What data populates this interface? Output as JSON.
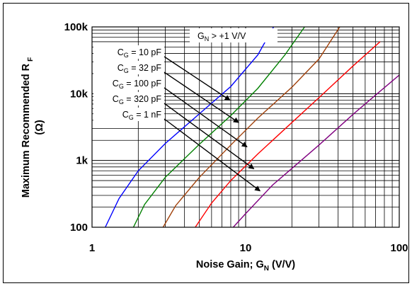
{
  "chart_data": {
    "type": "line",
    "x_scale": "log",
    "y_scale": "log",
    "xlim": [
      1,
      100
    ],
    "ylim": [
      100,
      100000
    ],
    "x_ticks": [
      "1",
      "10",
      "100"
    ],
    "y_ticks": [
      "100",
      "1k",
      "10k",
      "100k"
    ],
    "xlabel": "Noise Gain; G",
    "xlabel_sub": "N",
    "xlabel_suffix": " (V/V)",
    "ylabel_line1": "Maximum Recommended R",
    "ylabel_sub": "F",
    "ylabel_line2": "(Ω)",
    "grid": "on",
    "condition_box": {
      "prefix": "G",
      "sub": "N",
      "text": " > +1 V/V"
    },
    "series": [
      {
        "label_prefix": "C",
        "label_sub": "G",
        "label_value": " = 10 pF",
        "color": "#0000ff",
        "x": [
          1.22,
          1.5,
          2,
          3,
          5,
          8,
          12,
          15.2
        ],
        "y": [
          100,
          270,
          700,
          1800,
          5000,
          12800,
          38000,
          100000
        ]
      },
      {
        "label_prefix": "C",
        "label_sub": "G",
        "label_value": " = 32 pF",
        "color": "#008000",
        "x": [
          1.86,
          2.2,
          3,
          5,
          8,
          12,
          18,
          24.2
        ],
        "y": [
          100,
          220,
          560,
          1750,
          4700,
          12000,
          38000,
          100000
        ]
      },
      {
        "label_prefix": "C",
        "label_sub": "G",
        "label_value": " = 100 pF",
        "color": "#a0400a",
        "x": [
          2.9,
          3.5,
          5,
          8,
          12,
          20,
          30,
          41
        ],
        "y": [
          100,
          210,
          560,
          1700,
          4300,
          12500,
          33000,
          100000
        ]
      },
      {
        "label_prefix": "C",
        "label_sub": "G",
        "label_value": " = 320 pF",
        "color": "#ff0000",
        "x": [
          4.7,
          6,
          8,
          12,
          20,
          30,
          50,
          75
        ],
        "y": [
          100,
          230,
          500,
          1250,
          3700,
          8700,
          26000,
          60000
        ]
      },
      {
        "label_prefix": "C",
        "label_sub": "G",
        "label_value": " = 1 nF",
        "color": "#800080",
        "x": [
          8.3,
          10,
          15,
          20,
          30,
          50,
          70,
          100
        ],
        "y": [
          100,
          160,
          430,
          760,
          1700,
          4900,
          9500,
          19000
        ]
      }
    ]
  }
}
